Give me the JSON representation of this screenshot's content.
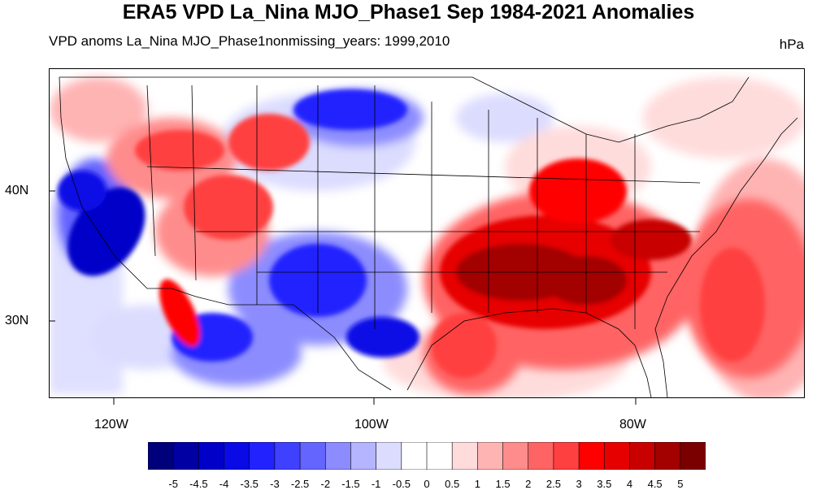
{
  "title": "ERA5 VPD La_Nina MJO_Phase1 Sep 1984-2021 Anomalies",
  "subtitle_left": "VPD anoms La_Nina MJO_Phase1nonmissing_years: 1999,2010",
  "units": "hPa",
  "axes": {
    "y_ticks": [
      "40N",
      "30N"
    ],
    "x_ticks": [
      "120W",
      "100W",
      "80W"
    ]
  },
  "colorbar": {
    "labels": [
      "-5",
      "-4.5",
      "-4",
      "-3.5",
      "-3",
      "-2.5",
      "-2",
      "-1.5",
      "-1",
      "-0.5",
      "0",
      "0.5",
      "1",
      "1.5",
      "2",
      "2.5",
      "3",
      "3.5",
      "4",
      "4.5",
      "5"
    ],
    "colors": [
      "#00007a",
      "#0000a3",
      "#0000c8",
      "#0a0ae6",
      "#2222ff",
      "#4040ff",
      "#6464ff",
      "#8c8cff",
      "#b4b4ff",
      "#dcdcff",
      "#ffffff",
      "#ffffff",
      "#ffdcdc",
      "#ffb4b4",
      "#ff8c8c",
      "#ff6464",
      "#ff4040",
      "#ff0000",
      "#e60000",
      "#c80000",
      "#a30000",
      "#7a0000"
    ]
  },
  "map": {
    "extent": {
      "lon": [
        -125,
        -67
      ],
      "lat": [
        24,
        49
      ]
    },
    "colors": {
      "strong_blue": "#0a0ae6",
      "mid_blue": "#6464ff",
      "light_blue": "#dcdcff",
      "strong_red": "#a30000",
      "mid_red": "#ff0000",
      "light_red": "#ffb4b4"
    }
  }
}
